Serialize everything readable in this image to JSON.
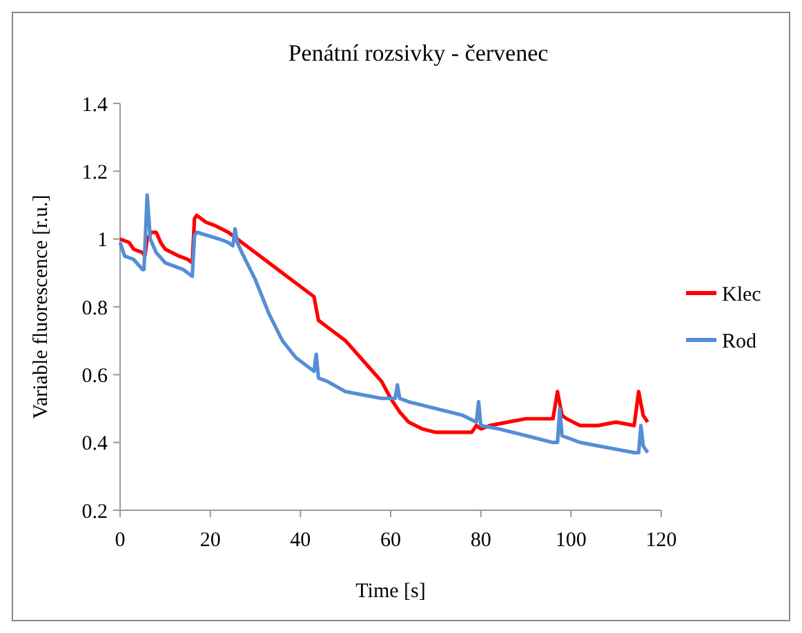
{
  "chart_data": {
    "type": "line",
    "title": "Penátní rozsivky - červenec",
    "xlabel": "Time [s]",
    "ylabel": "Variable fluorescence [r.u.]",
    "xlim": [
      0,
      120
    ],
    "xticks": [
      0,
      20,
      40,
      60,
      80,
      100,
      120
    ],
    "ylim": [
      0.2,
      1.4
    ],
    "yticks": [
      0.2,
      0.4,
      0.6,
      0.8,
      1,
      1.2,
      1.4
    ],
    "legend": "right",
    "series": [
      {
        "name": "Klec",
        "color": "#ff0000",
        "x": [
          0,
          2,
          3,
          5,
          5.5,
          6,
          7,
          8,
          9,
          10,
          13,
          15,
          16,
          16.5,
          17,
          19,
          21,
          24,
          26,
          28,
          32,
          36,
          40,
          43,
          44,
          46,
          50,
          54,
          58,
          60,
          62,
          64,
          67,
          70,
          75,
          78,
          79,
          80,
          82,
          86,
          90,
          96,
          97,
          98,
          99,
          102,
          106,
          110,
          114,
          115,
          116,
          117
        ],
        "values": [
          1.0,
          0.99,
          0.97,
          0.96,
          0.95,
          1.0,
          1.02,
          1.02,
          0.99,
          0.97,
          0.95,
          0.94,
          0.93,
          1.06,
          1.07,
          1.05,
          1.04,
          1.02,
          1.0,
          0.98,
          0.94,
          0.9,
          0.86,
          0.83,
          0.76,
          0.74,
          0.7,
          0.64,
          0.58,
          0.53,
          0.49,
          0.46,
          0.44,
          0.43,
          0.43,
          0.43,
          0.45,
          0.44,
          0.45,
          0.46,
          0.47,
          0.47,
          0.55,
          0.48,
          0.47,
          0.45,
          0.45,
          0.46,
          0.45,
          0.55,
          0.48,
          0.46
        ]
      },
      {
        "name": "Rod",
        "color": "#558ed5",
        "x": [
          0,
          1,
          3,
          5,
          5.3,
          6,
          6.7,
          8,
          10,
          12,
          14,
          16,
          16.5,
          17,
          22,
          24,
          25,
          25.5,
          26,
          27,
          30,
          33,
          36,
          39,
          42,
          43,
          43.5,
          44,
          46,
          50,
          54,
          58,
          60,
          61,
          61.5,
          62,
          64,
          70,
          76,
          79,
          79.5,
          80,
          84,
          90,
          96,
          97,
          97.5,
          98,
          102,
          106,
          110,
          114,
          115,
          115.5,
          116,
          117
        ],
        "values": [
          0.99,
          0.95,
          0.94,
          0.91,
          0.91,
          1.13,
          1.0,
          0.96,
          0.93,
          0.92,
          0.91,
          0.89,
          1.01,
          1.02,
          1.0,
          0.99,
          0.98,
          1.03,
          0.99,
          0.96,
          0.88,
          0.78,
          0.7,
          0.65,
          0.62,
          0.61,
          0.66,
          0.59,
          0.58,
          0.55,
          0.54,
          0.53,
          0.53,
          0.53,
          0.57,
          0.53,
          0.52,
          0.5,
          0.48,
          0.46,
          0.52,
          0.45,
          0.44,
          0.42,
          0.4,
          0.4,
          0.5,
          0.42,
          0.4,
          0.39,
          0.38,
          0.37,
          0.37,
          0.45,
          0.39,
          0.37
        ]
      }
    ]
  }
}
